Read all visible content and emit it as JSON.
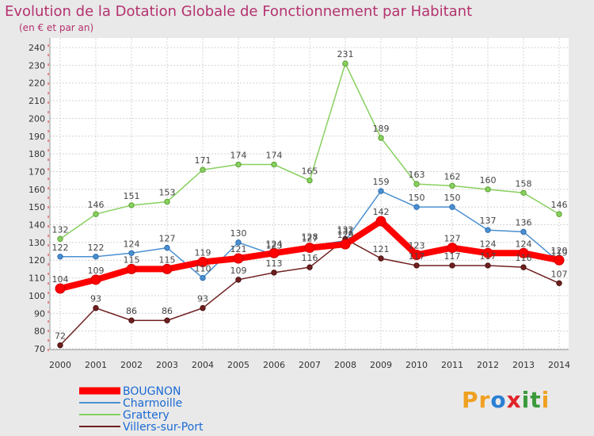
{
  "header": {
    "title": "Evolution de la Dotation Globale de Fonctionnement par Habitant",
    "subtitle": "(en € et par an)"
  },
  "logo": {
    "parts": [
      "Pr",
      "o",
      "x",
      "it",
      "i"
    ]
  },
  "colors": {
    "background": "#e9e9e9",
    "plot_background": "#ffffff",
    "title": "#b4326e",
    "legend_text": "#1a6ad4",
    "bougnon": "#ff0000",
    "charmoille": "#4a90d0",
    "grattery": "#88d060",
    "villers": "#702020"
  },
  "chart_data": {
    "type": "line",
    "title": "Evolution de la Dotation Globale de Fonctionnement par Habitant",
    "subtitle": "(en € et par an)",
    "xlabel": "",
    "ylabel": "",
    "x": [
      "2000",
      "2001",
      "2002",
      "2003",
      "2004",
      "2005",
      "2006",
      "2007",
      "2008",
      "2009",
      "2010",
      "2011",
      "2012",
      "2013",
      "2014"
    ],
    "ylim": [
      70,
      240
    ],
    "yticks": [
      70,
      80,
      90,
      100,
      110,
      120,
      130,
      140,
      150,
      160,
      170,
      180,
      190,
      200,
      210,
      220,
      230,
      240
    ],
    "grid": true,
    "legend": "bottom-left",
    "series": [
      {
        "name": "BOUGNON",
        "color": "#ff0000",
        "values": [
          104,
          109,
          115,
          115,
          119,
          121,
          124,
          127,
          129,
          142,
          123,
          127,
          124,
          124,
          120
        ],
        "labels": [
          "104",
          "109",
          "115",
          "115",
          "119",
          "121",
          "124",
          "127",
          "129",
          "142",
          "123",
          "127",
          "124",
          "124",
          "120"
        ]
      },
      {
        "name": "Charmoille",
        "color": "#4a90d0",
        "values": [
          122,
          122,
          124,
          127,
          110,
          130,
          123,
          128,
          131,
          159,
          150,
          150,
          137,
          136,
          119
        ],
        "labels": [
          "122",
          "122",
          "124",
          "127",
          "110",
          "130",
          "123",
          "128",
          "131",
          "159",
          "150",
          "150",
          "137",
          "136",
          "119"
        ]
      },
      {
        "name": "Grattery",
        "color": "#88d060",
        "values": [
          132,
          146,
          151,
          153,
          171,
          174,
          174,
          165,
          231,
          189,
          163,
          162,
          160,
          158,
          146
        ],
        "labels": [
          "132",
          "146",
          "151",
          "153",
          "171",
          "174",
          "174",
          "165",
          "231",
          "189",
          "163",
          "162",
          "160",
          "158",
          "146"
        ]
      },
      {
        "name": "Villers-sur-Port",
        "color": "#702020",
        "values": [
          72,
          93,
          86,
          86,
          93,
          109,
          113,
          116,
          132,
          121,
          117,
          117,
          117,
          116,
          107
        ],
        "labels": [
          "72",
          "93",
          "86",
          "86",
          "93",
          "109",
          "113",
          "116",
          "132",
          "121",
          "117",
          "117",
          "117",
          "116",
          "107"
        ]
      }
    ]
  }
}
